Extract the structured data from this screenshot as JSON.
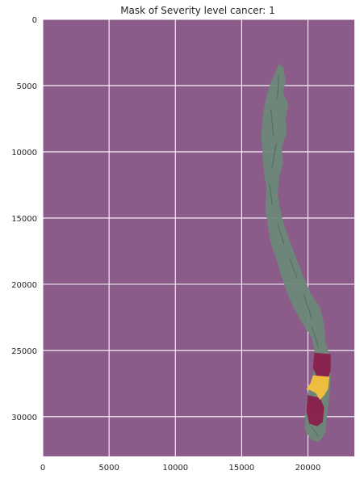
{
  "chart_data": {
    "type": "heatmap",
    "title": "Mask of Severity level cancer: 1",
    "xlabel": "",
    "ylabel": "",
    "xlim": [
      0,
      23500
    ],
    "ylim": [
      33000,
      0
    ],
    "x_ticks": [
      0,
      5000,
      10000,
      15000,
      20000
    ],
    "y_ticks": [
      0,
      5000,
      10000,
      15000,
      20000,
      25000,
      30000
    ],
    "grid": true,
    "legend": "none",
    "colors": {
      "background_mask": "#8b5c8a",
      "tissue": "#6b8878",
      "tissue_dark": "#4e6a5c",
      "severity_low": "#8b1f4e",
      "severity_high": "#f5c03c",
      "grid": "#ffffff"
    },
    "regions": [
      {
        "name": "tissue",
        "color_key": "tissue",
        "polygon": [
          [
            17800,
            3400
          ],
          [
            18100,
            3600
          ],
          [
            18300,
            4600
          ],
          [
            18100,
            5600
          ],
          [
            18500,
            6400
          ],
          [
            18300,
            7600
          ],
          [
            18400,
            8600
          ],
          [
            18000,
            9600
          ],
          [
            18100,
            10800
          ],
          [
            17800,
            12000
          ],
          [
            17700,
            13200
          ],
          [
            17900,
            14400
          ],
          [
            18200,
            15600
          ],
          [
            18700,
            17000
          ],
          [
            19200,
            18300
          ],
          [
            19700,
            19600
          ],
          [
            20200,
            20700
          ],
          [
            20900,
            21800
          ],
          [
            21200,
            23000
          ],
          [
            21300,
            24300
          ],
          [
            21600,
            25400
          ],
          [
            21700,
            26800
          ],
          [
            21600,
            28400
          ],
          [
            21400,
            30000
          ],
          [
            21300,
            31200
          ],
          [
            20800,
            31900
          ],
          [
            20200,
            31700
          ],
          [
            19800,
            31000
          ],
          [
            19800,
            30000
          ],
          [
            20000,
            28200
          ],
          [
            20400,
            26800
          ],
          [
            20600,
            25400
          ],
          [
            20300,
            24000
          ],
          [
            19500,
            22800
          ],
          [
            18900,
            21700
          ],
          [
            18400,
            20500
          ],
          [
            18000,
            19300
          ],
          [
            17600,
            18000
          ],
          [
            17200,
            16900
          ],
          [
            17000,
            15600
          ],
          [
            16800,
            14200
          ],
          [
            16900,
            12800
          ],
          [
            16700,
            11600
          ],
          [
            16600,
            10200
          ],
          [
            16500,
            8800
          ],
          [
            16600,
            7400
          ],
          [
            16800,
            6200
          ],
          [
            17100,
            5100
          ],
          [
            17500,
            4100
          ]
        ]
      },
      {
        "name": "severity-1-upper",
        "color_key": "severity_low",
        "polygon": [
          [
            20500,
            25200
          ],
          [
            21700,
            25300
          ],
          [
            21700,
            26500
          ],
          [
            21500,
            27100
          ],
          [
            20700,
            27000
          ],
          [
            20400,
            26300
          ]
        ]
      },
      {
        "name": "severity-1-lower",
        "color_key": "severity_low",
        "polygon": [
          [
            20000,
            28400
          ],
          [
            20900,
            28600
          ],
          [
            21200,
            29300
          ],
          [
            21100,
            30400
          ],
          [
            20700,
            30700
          ],
          [
            20100,
            30500
          ],
          [
            19900,
            29600
          ]
        ]
      },
      {
        "name": "severity-1-high",
        "color_key": "severity_high",
        "polygon": [
          [
            20400,
            26900
          ],
          [
            21600,
            27000
          ],
          [
            21500,
            27900
          ],
          [
            21200,
            28400
          ],
          [
            20900,
            28700
          ],
          [
            20600,
            28200
          ],
          [
            20200,
            28000
          ],
          [
            19900,
            27900
          ],
          [
            20200,
            27500
          ]
        ]
      }
    ],
    "texture_segments": [
      [
        [
          17800,
          4200
        ],
        [
          17700,
          6000
        ]
      ],
      [
        [
          17200,
          6800
        ],
        [
          17400,
          8800
        ]
      ],
      [
        [
          17600,
          9400
        ],
        [
          17300,
          11200
        ]
      ],
      [
        [
          17100,
          12400
        ],
        [
          17300,
          14000
        ]
      ],
      [
        [
          17700,
          15400
        ],
        [
          18200,
          17000
        ]
      ],
      [
        [
          18600,
          18000
        ],
        [
          19200,
          19600
        ]
      ],
      [
        [
          19700,
          20800
        ],
        [
          20300,
          22600
        ]
      ],
      [
        [
          20300,
          23200
        ],
        [
          20800,
          24800
        ]
      ],
      [
        [
          20300,
          30800
        ],
        [
          20800,
          31500
        ]
      ]
    ]
  }
}
